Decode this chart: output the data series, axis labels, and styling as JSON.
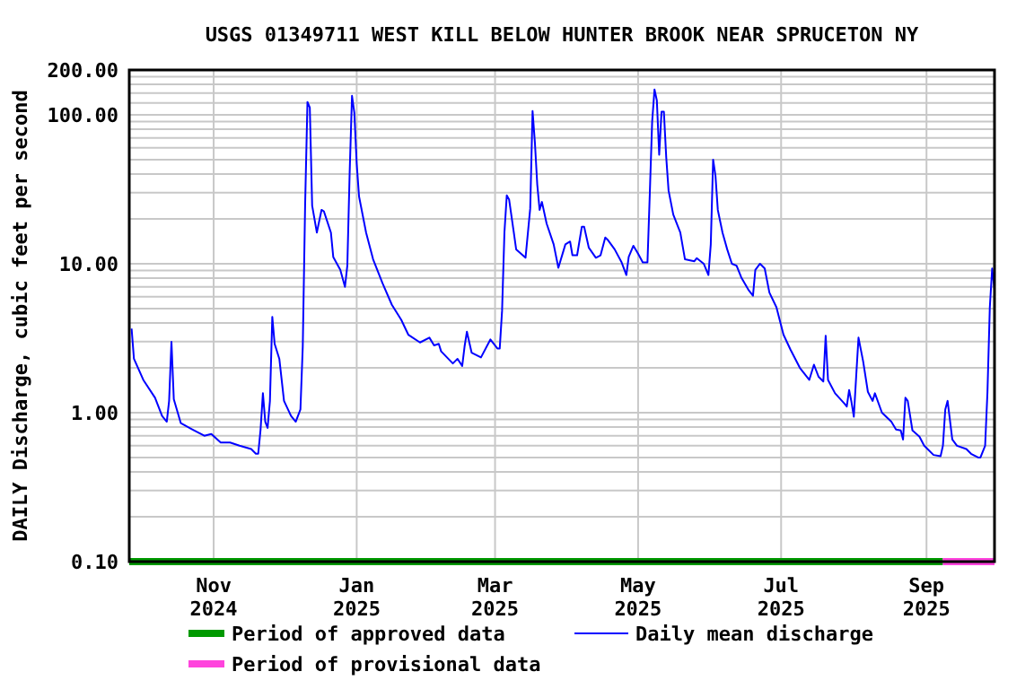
{
  "chart_data": {
    "type": "line",
    "title": "USGS 01349711 WEST KILL BELOW HUNTER BROOK NEAR SPRUCETON NY",
    "ylabel": "DAILY Discharge, cubic feet per second",
    "log": "y",
    "grid": true,
    "legend": "bottom",
    "xlim": [
      "2024-09-26",
      "2025-09-30"
    ],
    "ylim": [
      0.1,
      200
    ],
    "xticks": [
      {
        "value": "2024-11-01",
        "label": "Nov 2024"
      },
      {
        "value": "2025-01-01",
        "label": "Jan 2025"
      },
      {
        "value": "2025-03-01",
        "label": "Mar 2025"
      },
      {
        "value": "2025-05-01",
        "label": "May 2025"
      },
      {
        "value": "2025-07-01",
        "label": "Jul 2025"
      },
      {
        "value": "2025-09-01",
        "label": "Sep 2025"
      }
    ],
    "yticks": [
      {
        "value": 0.1,
        "label": "0.10"
      },
      {
        "value": 0.2,
        "label": null
      },
      {
        "value": 0.3,
        "label": null
      },
      {
        "value": 0.4,
        "label": null
      },
      {
        "value": 0.5,
        "label": null
      },
      {
        "value": 0.6,
        "label": null
      },
      {
        "value": 0.7,
        "label": null
      },
      {
        "value": 0.8,
        "label": null
      },
      {
        "value": 0.9,
        "label": null
      },
      {
        "value": 1,
        "label": "1.00"
      },
      {
        "value": 2,
        "label": null
      },
      {
        "value": 3,
        "label": null
      },
      {
        "value": 4,
        "label": null
      },
      {
        "value": 5,
        "label": null
      },
      {
        "value": 6,
        "label": null
      },
      {
        "value": 7,
        "label": null
      },
      {
        "value": 8,
        "label": null
      },
      {
        "value": 9,
        "label": null
      },
      {
        "value": 10,
        "label": "10.00"
      },
      {
        "value": 20,
        "label": null
      },
      {
        "value": 30,
        "label": null
      },
      {
        "value": 40,
        "label": null
      },
      {
        "value": 50,
        "label": null
      },
      {
        "value": 60,
        "label": null
      },
      {
        "value": 70,
        "label": null
      },
      {
        "value": 80,
        "label": null
      },
      {
        "value": 90,
        "label": null
      },
      {
        "value": 100,
        "label": "100.00"
      },
      {
        "value": 120,
        "label": null
      },
      {
        "value": 140,
        "label": null
      },
      {
        "value": 160,
        "label": null
      },
      {
        "value": 180,
        "label": null
      },
      {
        "value": 200,
        "label": "200.00"
      }
    ],
    "series": [
      {
        "name": "Period of approved data",
        "color": "#009900",
        "x": [
          "2024-09-26",
          "2025-09-08"
        ],
        "values": [
          0.1,
          0.1
        ]
      },
      {
        "name": "Period of provisional data",
        "color": "#ff44dd",
        "x": [
          "2025-09-08",
          "2025-09-30"
        ],
        "values": [
          0.1,
          0.1
        ]
      },
      {
        "name": "Daily mean discharge",
        "color": "#0000ff",
        "x": [
          "2024-09-27",
          "2024-09-28",
          "2024-10-02",
          "2024-10-07",
          "2024-10-10",
          "2024-10-12",
          "2024-10-13",
          "2024-10-14",
          "2024-10-15",
          "2024-10-18",
          "2024-10-23",
          "2024-10-28",
          "2024-10-31",
          "2024-11-04",
          "2024-11-08",
          "2024-11-12",
          "2024-11-17",
          "2024-11-19",
          "2024-11-20",
          "2024-11-21",
          "2024-11-22",
          "2024-11-23",
          "2024-11-24",
          "2024-11-25",
          "2024-11-26",
          "2024-11-27",
          "2024-11-29",
          "2024-12-01",
          "2024-12-04",
          "2024-12-06",
          "2024-12-08",
          "2024-12-09",
          "2024-12-10",
          "2024-12-11",
          "2024-12-12",
          "2024-12-13",
          "2024-12-15",
          "2024-12-17",
          "2024-12-18",
          "2024-12-21",
          "2024-12-22",
          "2024-12-25",
          "2024-12-27",
          "2024-12-28",
          "2024-12-29",
          "2024-12-30",
          "2024-12-31",
          "2025-01-01",
          "2025-01-02",
          "2025-01-05",
          "2025-01-08",
          "2025-01-12",
          "2025-01-16",
          "2025-01-20",
          "2025-01-23",
          "2025-01-28",
          "2025-02-01",
          "2025-02-03",
          "2025-02-05",
          "2025-02-06",
          "2025-02-11",
          "2025-02-13",
          "2025-02-15",
          "2025-02-16",
          "2025-02-17",
          "2025-02-19",
          "2025-02-23",
          "2025-02-27",
          "2025-03-02",
          "2025-03-03",
          "2025-03-04",
          "2025-03-05",
          "2025-03-06",
          "2025-03-07",
          "2025-03-09",
          "2025-03-10",
          "2025-03-14",
          "2025-03-16",
          "2025-03-17",
          "2025-03-18",
          "2025-03-19",
          "2025-03-20",
          "2025-03-21",
          "2025-03-23",
          "2025-03-26",
          "2025-03-28",
          "2025-03-31",
          "2025-04-02",
          "2025-04-03",
          "2025-04-05",
          "2025-04-07",
          "2025-04-08",
          "2025-04-10",
          "2025-04-13",
          "2025-04-15",
          "2025-04-17",
          "2025-04-18",
          "2025-04-21",
          "2025-04-24",
          "2025-04-26",
          "2025-04-27",
          "2025-04-29",
          "2025-05-01",
          "2025-05-03",
          "2025-05-05",
          "2025-05-06",
          "2025-05-07",
          "2025-05-08",
          "2025-05-09",
          "2025-05-10",
          "2025-05-11",
          "2025-05-12",
          "2025-05-13",
          "2025-05-14",
          "2025-05-16",
          "2025-05-19",
          "2025-05-21",
          "2025-05-25",
          "2025-05-26",
          "2025-05-29",
          "2025-05-31",
          "2025-06-01",
          "2025-06-02",
          "2025-06-03",
          "2025-06-04",
          "2025-06-06",
          "2025-06-08",
          "2025-06-10",
          "2025-06-12",
          "2025-06-14",
          "2025-06-17",
          "2025-06-19",
          "2025-06-20",
          "2025-06-22",
          "2025-06-24",
          "2025-06-26",
          "2025-06-29",
          "2025-07-02",
          "2025-07-05",
          "2025-07-09",
          "2025-07-13",
          "2025-07-15",
          "2025-07-17",
          "2025-07-19",
          "2025-07-20",
          "2025-07-21",
          "2025-07-24",
          "2025-07-28",
          "2025-07-29",
          "2025-07-30",
          "2025-07-31",
          "2025-08-01",
          "2025-08-02",
          "2025-08-03",
          "2025-08-05",
          "2025-08-07",
          "2025-08-09",
          "2025-08-10",
          "2025-08-13",
          "2025-08-17",
          "2025-08-19",
          "2025-08-21",
          "2025-08-22",
          "2025-08-23",
          "2025-08-24",
          "2025-08-26",
          "2025-08-29",
          "2025-08-31",
          "2025-09-04",
          "2025-09-07",
          "2025-09-08",
          "2025-09-09",
          "2025-09-10",
          "2025-09-12",
          "2025-09-14",
          "2025-09-18",
          "2025-09-20",
          "2025-09-23",
          "2025-09-24",
          "2025-09-26",
          "2025-09-27",
          "2025-09-28",
          "2025-09-29",
          "2025-09-30"
        ],
        "values": [
          3.67,
          2.3,
          1.66,
          1.26,
          0.95,
          0.87,
          1.2,
          2.99,
          1.23,
          0.85,
          0.77,
          0.7,
          0.72,
          0.63,
          0.63,
          0.6,
          0.57,
          0.53,
          0.53,
          0.77,
          1.35,
          0.87,
          0.79,
          1.2,
          4.4,
          2.9,
          2.3,
          1.2,
          0.95,
          0.87,
          1.05,
          2.78,
          24.6,
          122,
          112,
          24.6,
          16.2,
          23,
          22.5,
          16.2,
          11.1,
          9.1,
          7,
          9.7,
          41,
          134,
          103,
          47,
          28.3,
          16.2,
          10.7,
          7.4,
          5.3,
          4.2,
          3.34,
          2.96,
          3.19,
          2.83,
          2.9,
          2.58,
          2.14,
          2.3,
          2.06,
          2.78,
          3.5,
          2.53,
          2.35,
          3.1,
          2.7,
          2.7,
          4.85,
          16.2,
          28.8,
          27,
          16.2,
          12.5,
          10.97,
          23.5,
          106,
          65,
          34,
          23,
          26,
          18.6,
          13.5,
          9.4,
          13.5,
          14.1,
          11.4,
          11.4,
          17.7,
          17.7,
          12.8,
          10.97,
          11.4,
          15,
          14.5,
          12.5,
          10.2,
          8.4,
          11.1,
          13.2,
          11.7,
          10.2,
          10.2,
          29.6,
          90,
          148,
          125,
          54,
          105,
          105,
          52,
          31,
          21.4,
          16.2,
          10.7,
          10.4,
          10.9,
          10,
          8.4,
          13.5,
          50,
          39,
          23,
          16.2,
          12.5,
          10,
          9.7,
          8.1,
          6.7,
          6.1,
          9.1,
          10,
          9.3,
          6.4,
          5.1,
          3.34,
          2.65,
          2,
          1.66,
          2.1,
          1.74,
          1.62,
          3.28,
          1.66,
          1.35,
          1.15,
          1.1,
          1.42,
          1.18,
          0.94,
          1.74,
          3.19,
          2.2,
          1.38,
          1.2,
          1.35,
          1,
          0.87,
          0.77,
          0.76,
          0.66,
          1.26,
          1.2,
          0.76,
          0.69,
          0.6,
          0.52,
          0.51,
          0.6,
          1.05,
          1.2,
          0.66,
          0.6,
          0.57,
          0.53,
          0.5,
          0.5,
          0.6,
          1.38,
          5.1,
          9.3,
          6.7
        ]
      }
    ]
  }
}
